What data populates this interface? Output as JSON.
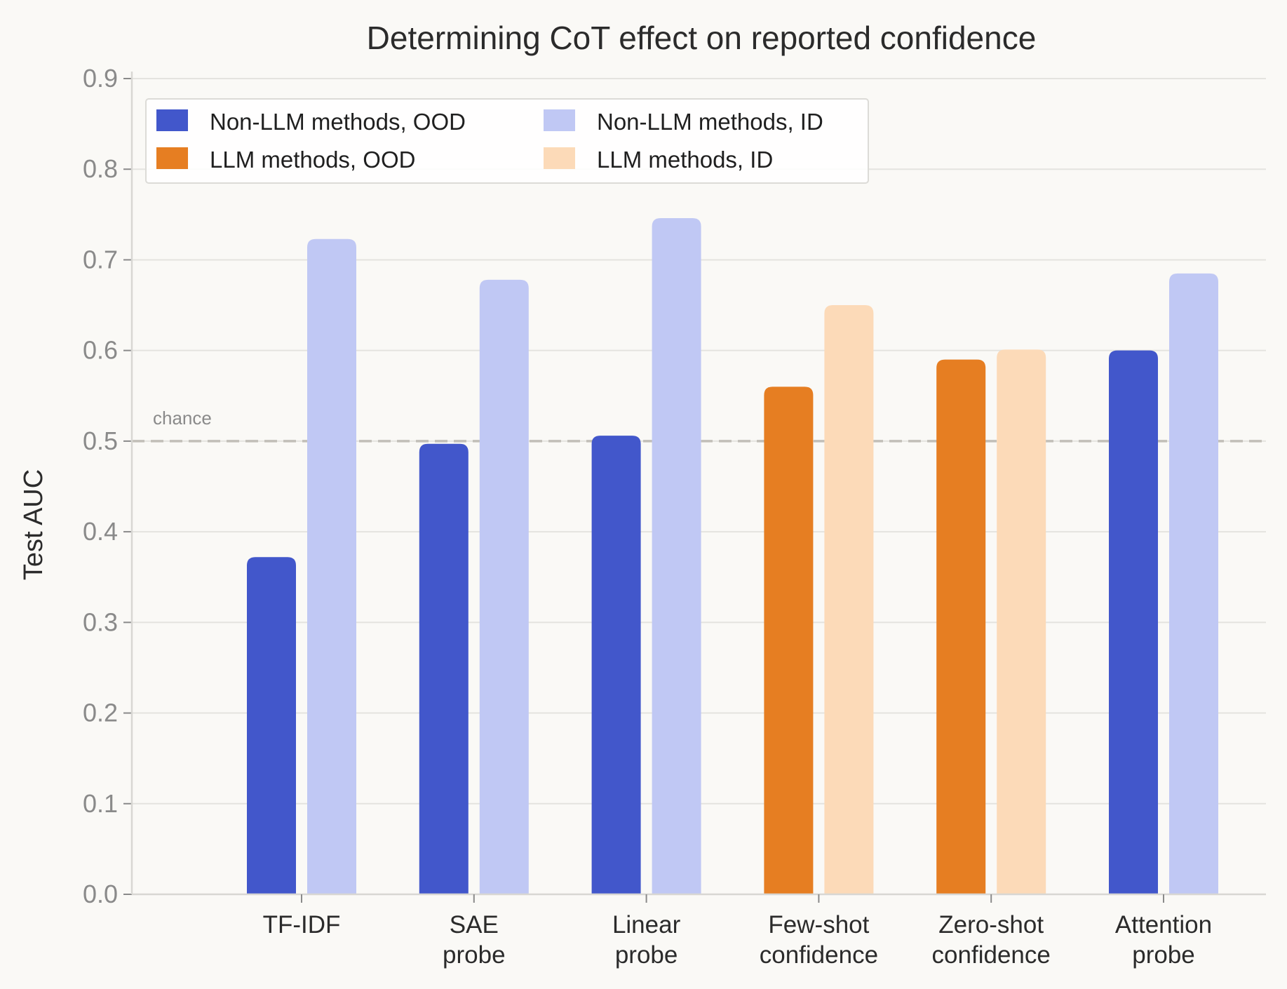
{
  "chart_data": {
    "type": "bar",
    "title": "Determining CoT effect on reported confidence",
    "xlabel": "",
    "ylabel": "Test AUC",
    "ylim": [
      0,
      0.9
    ],
    "yticks": [
      "0.0",
      "0.1",
      "0.2",
      "0.3",
      "0.4",
      "0.5",
      "0.6",
      "0.7",
      "0.8",
      "0.9"
    ],
    "grid": true,
    "legend_position": "top-left",
    "categories": [
      [
        "TF-IDF"
      ],
      [
        "SAE",
        "probe"
      ],
      [
        "Linear",
        "probe"
      ],
      [
        "Few-shot",
        "confidence"
      ],
      [
        "Zero-shot",
        "confidence"
      ],
      [
        "Attention",
        "probe"
      ]
    ],
    "series": [
      {
        "name": "OOD",
        "values": [
          0.372,
          0.497,
          0.506,
          0.56,
          0.59,
          0.6
        ]
      },
      {
        "name": "ID",
        "values": [
          0.723,
          0.678,
          0.746,
          0.65,
          0.601,
          0.685
        ]
      }
    ],
    "bar_method_type": [
      "non-llm",
      "non-llm",
      "non-llm",
      "llm",
      "llm",
      "non-llm"
    ],
    "legend": [
      {
        "label": "Non-LLM methods, OOD",
        "color": "#4257cb"
      },
      {
        "label": "LLM methods, OOD",
        "color": "#e67e22"
      },
      {
        "label": "Non-LLM methods, ID",
        "color": "#c0c8f4"
      },
      {
        "label": "LLM methods, ID",
        "color": "#fcdab8"
      }
    ],
    "colors": {
      "non-llm": {
        "OOD": "#4257cb",
        "ID": "#c0c8f4"
      },
      "llm": {
        "OOD": "#e67e22",
        "ID": "#fcdab8"
      }
    },
    "reference_line": {
      "value": 0.5,
      "label": "chance",
      "color": "#c2bfb8"
    }
  }
}
